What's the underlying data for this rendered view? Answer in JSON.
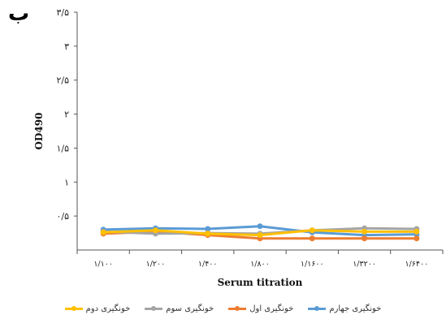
{
  "panel_label": "ب",
  "chart_data": {
    "type": "line",
    "xlabel": "Serum titration",
    "ylabel": "OD490",
    "ylim": [
      0,
      3.5
    ],
    "y_ticks": [
      {
        "value": 0.5,
        "label": "۰/۵"
      },
      {
        "value": 1.0,
        "label": "۱"
      },
      {
        "value": 1.5,
        "label": "۱/۵"
      },
      {
        "value": 2.0,
        "label": "۲"
      },
      {
        "value": 2.5,
        "label": "۲/۵"
      },
      {
        "value": 3.0,
        "label": "۳"
      },
      {
        "value": 3.5,
        "label": "۳/۵"
      }
    ],
    "categories": [
      "۱/۱۰۰",
      "۱/۲۰۰",
      "۱/۴۰۰",
      "۱/۸۰۰",
      "۱/۱۶۰۰",
      "۱/۳۲۰۰",
      "۱/۶۴۰۰"
    ],
    "series": [
      {
        "name": "خونگیری جهارم",
        "color": "#5b9bd5",
        "values": [
          0.3,
          0.32,
          0.31,
          0.35,
          0.26,
          0.22,
          0.23
        ]
      },
      {
        "name": "خونگیری اول",
        "color": "#ed7d31",
        "values": [
          0.24,
          0.27,
          0.22,
          0.17,
          0.17,
          0.17,
          0.17
        ]
      },
      {
        "name": "خونگیری سوم",
        "color": "#a5a5a5",
        "values": [
          0.27,
          0.24,
          0.25,
          0.24,
          0.29,
          0.32,
          0.31
        ]
      },
      {
        "name": "خونگیری دوم",
        "color": "#ffc000",
        "values": [
          0.26,
          0.29,
          0.24,
          0.22,
          0.29,
          0.27,
          0.27
        ]
      }
    ],
    "legend_position": "bottom",
    "grid": false
  }
}
